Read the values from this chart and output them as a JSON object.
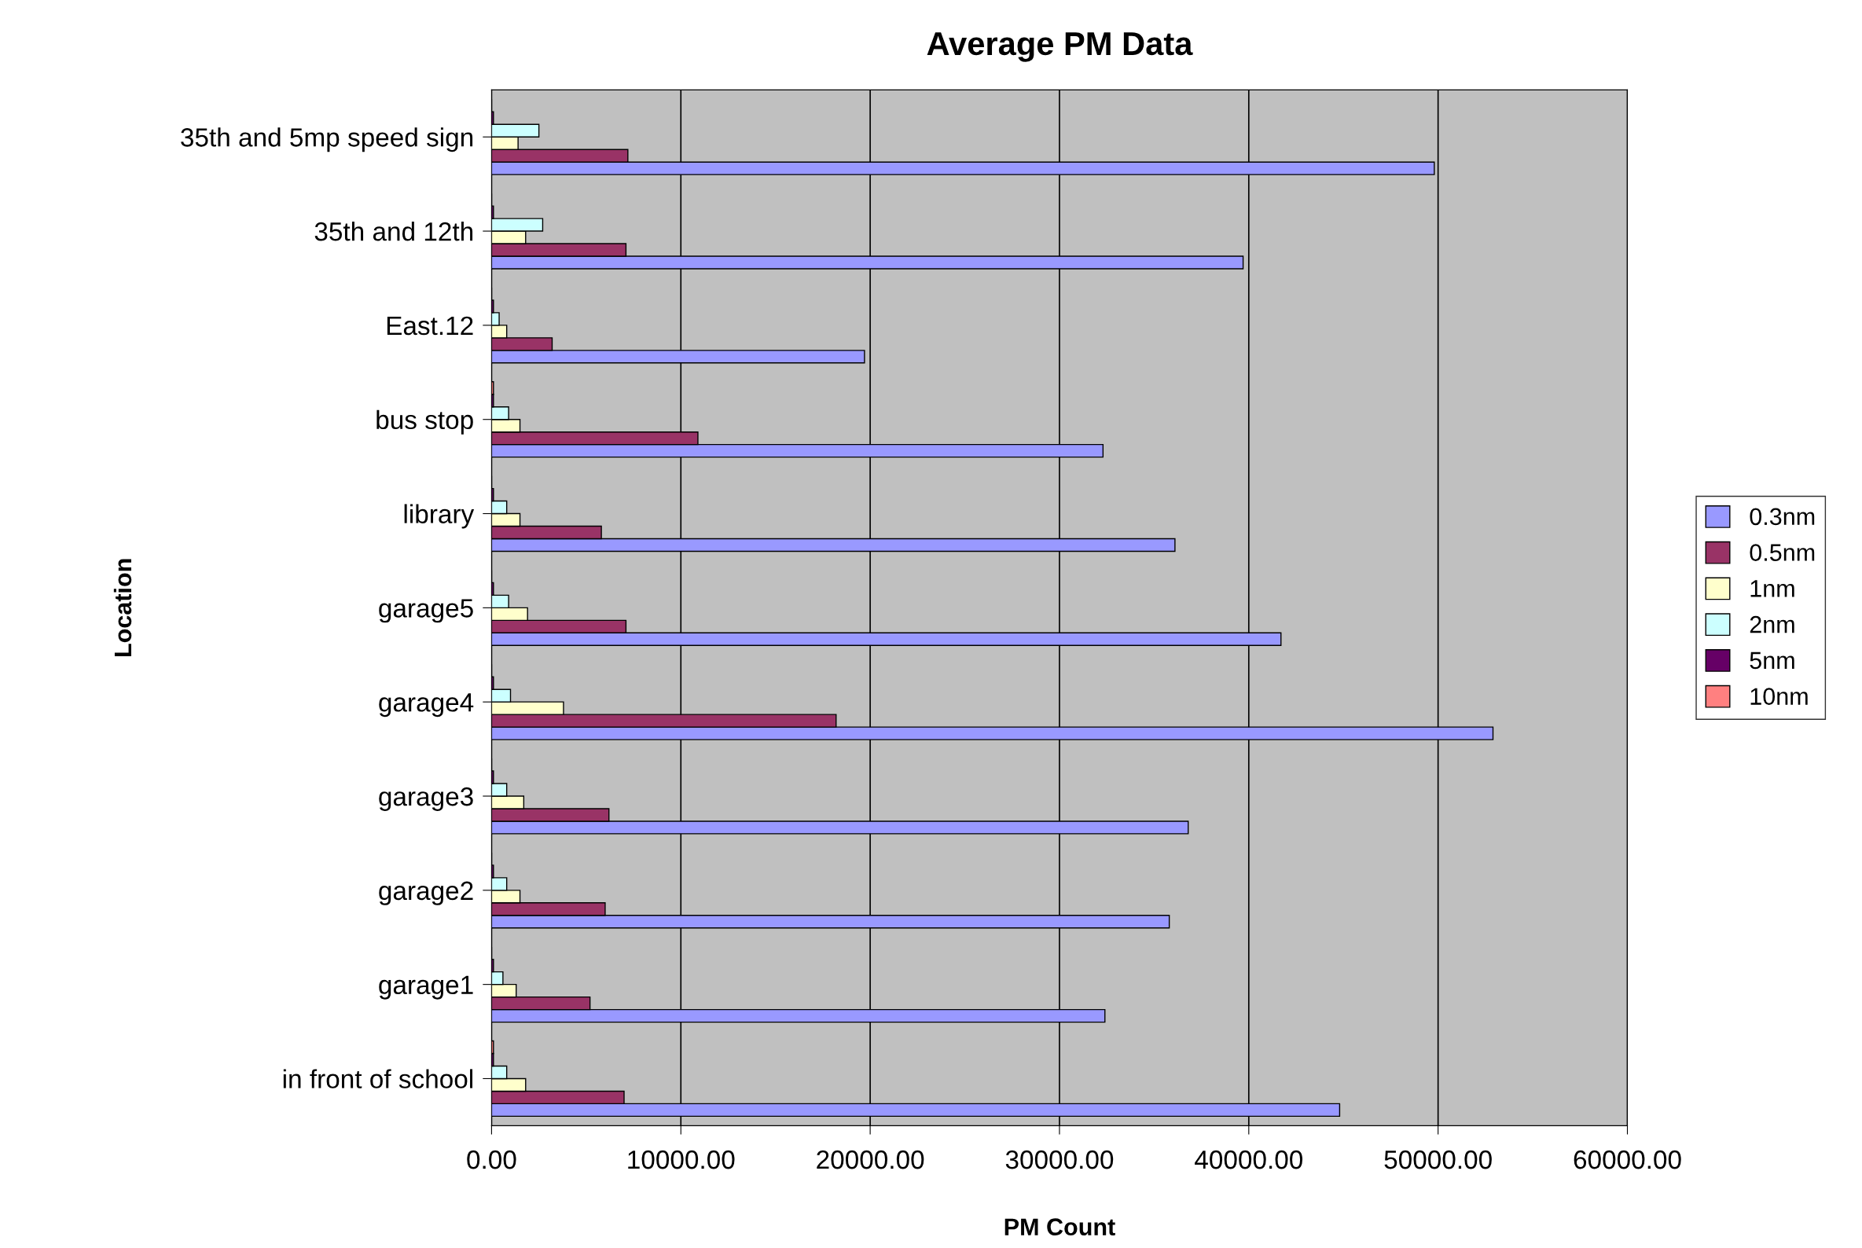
{
  "chart_data": {
    "type": "bar",
    "orientation": "horizontal",
    "title": "Average PM Data",
    "xlabel": "PM Count",
    "ylabel": "Location",
    "categories": [
      "35th and 5mp speed sign",
      "35th and 12th",
      "East.12",
      "bus stop",
      "library",
      "garage5",
      "garage4",
      "garage3",
      "garage2",
      "garage1",
      "in front of school"
    ],
    "series": [
      {
        "name": "0.3nm",
        "color": "#9999ff",
        "values": [
          49800,
          39700,
          19700,
          32300,
          36100,
          41700,
          52900,
          36800,
          35800,
          32400,
          44800
        ]
      },
      {
        "name": "0.5nm",
        "color": "#993366",
        "values": [
          7200,
          7100,
          3200,
          10900,
          5800,
          7100,
          18200,
          6200,
          6000,
          5200,
          7000
        ]
      },
      {
        "name": "1nm",
        "color": "#ffffcc",
        "values": [
          1400,
          1800,
          800,
          1500,
          1500,
          1900,
          3800,
          1700,
          1500,
          1300,
          1800
        ]
      },
      {
        "name": "2nm",
        "color": "#ccffff",
        "values": [
          2500,
          2700,
          400,
          900,
          800,
          900,
          1000,
          800,
          800,
          600,
          800
        ]
      },
      {
        "name": "5nm",
        "color": "#660066",
        "values": [
          100,
          100,
          100,
          100,
          100,
          100,
          100,
          100,
          100,
          100,
          100
        ]
      },
      {
        "name": "10nm",
        "color": "#ff8080",
        "values": [
          null,
          null,
          null,
          100,
          null,
          null,
          null,
          null,
          null,
          null,
          100
        ]
      }
    ],
    "xlim": [
      0,
      60000
    ],
    "xticks": [
      {
        "value": 0,
        "label": "0.00"
      },
      {
        "value": 10000,
        "label": "10000.00"
      },
      {
        "value": 20000,
        "label": "20000.00"
      },
      {
        "value": 30000,
        "label": "30000.00"
      },
      {
        "value": 40000,
        "label": "40000.00"
      },
      {
        "value": 50000,
        "label": "50000.00"
      },
      {
        "value": 60000,
        "label": "60000.00"
      }
    ],
    "grid": "x",
    "legend": "right"
  }
}
